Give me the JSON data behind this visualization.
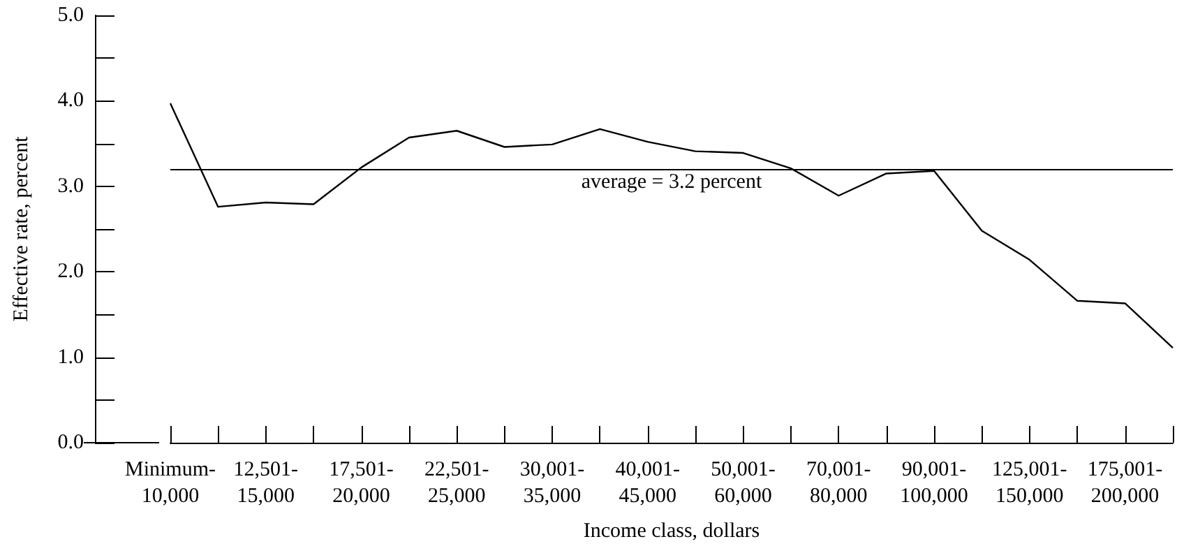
{
  "chart_data": {
    "type": "line",
    "xlabel": "Income class, dollars",
    "ylabel": "Effective rate, percent",
    "categories": [
      "Minimum-10,000",
      null,
      "12,501-15,000",
      null,
      "17,501-20,000",
      null,
      "22,501-25,000",
      null,
      "30,001-35,000",
      null,
      "40,001-45,000",
      null,
      "50,001-60,000",
      null,
      "70,001-80,000",
      null,
      "90,001-100,000",
      null,
      "125,001-150,000",
      null,
      "175,001-200,000",
      null
    ],
    "series": [
      {
        "color": "#000000",
        "values": [
          3.97,
          2.76,
          2.81,
          2.79,
          3.22,
          3.57,
          3.65,
          3.46,
          3.49,
          3.67,
          3.52,
          3.41,
          3.39,
          3.21,
          2.89,
          3.15,
          3.18,
          2.48,
          2.14,
          1.66,
          1.63,
          1.11
        ]
      }
    ],
    "ylim": [
      0,
      5
    ],
    "yticks": [
      {
        "value": 0,
        "label": "0.0"
      },
      {
        "value": 1,
        "label": "1.0"
      },
      {
        "value": 2,
        "label": "2.0"
      },
      {
        "value": 3,
        "label": "3.0"
      },
      {
        "value": 4,
        "label": "4.0"
      },
      {
        "value": 5,
        "label": "5.0"
      }
    ],
    "ref_lines": [
      {
        "axis": "y",
        "value": 3.2,
        "label": "average = 3.2 percent",
        "color": "#000000",
        "line_style": "solid"
      }
    ],
    "grid": false,
    "marker": "none",
    "line_style": "solid"
  }
}
